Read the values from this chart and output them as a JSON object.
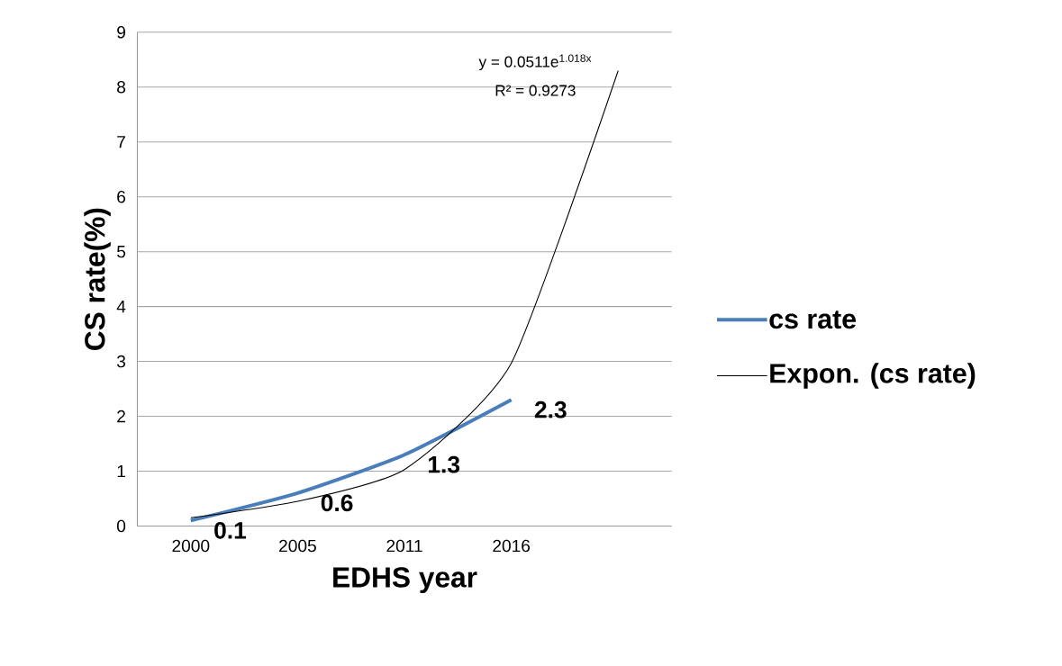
{
  "chart_data": {
    "type": "line",
    "xlabel": "EDHS year",
    "ylabel": "CS rate(%)",
    "categories": [
      "2000",
      "2005",
      "2011",
      "2016",
      null
    ],
    "ylim": [
      0,
      9
    ],
    "yticks": [
      0,
      1,
      2,
      3,
      4,
      5,
      6,
      7,
      8,
      9
    ],
    "series": [
      {
        "name": "cs rate",
        "color": "#4a7ebb",
        "values": [
          0.1,
          0.6,
          1.3,
          2.3,
          null
        ],
        "value_labels": [
          "0.1",
          "0.6",
          "1.3",
          "2.3",
          null
        ]
      },
      {
        "name": "Expon. (cs rate)",
        "type": "line",
        "color": "#000000",
        "values": [
          0.15,
          0.45,
          1.03,
          2.97,
          8.3
        ]
      }
    ],
    "annotations": [
      "y = 0.0511e$^{1.018x}$",
      "R² = 0.9273"
    ],
    "grid": "y",
    "legend": "right",
    "line_style": "solid"
  }
}
